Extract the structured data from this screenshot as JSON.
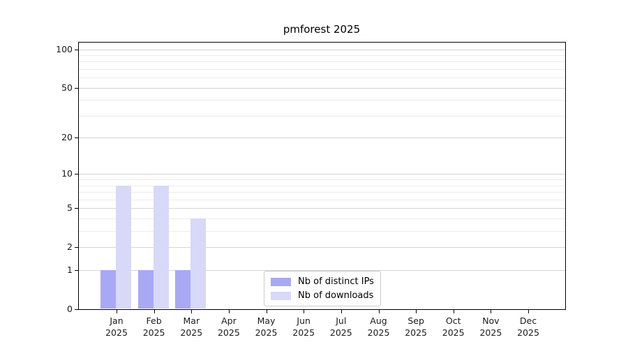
{
  "chart_data": {
    "type": "bar",
    "title": "pmforest 2025",
    "categories": [
      "Jan 2025",
      "Feb 2025",
      "Mar 2025",
      "Apr 2025",
      "May 2025",
      "Jun 2025",
      "Jul 2025",
      "Aug 2025",
      "Sep 2025",
      "Oct 2025",
      "Nov 2025",
      "Dec 2025"
    ],
    "series": [
      {
        "name": "Nb of distinct IPs",
        "color": "#a8a8f5",
        "values": [
          1,
          1,
          1,
          0,
          0,
          0,
          0,
          0,
          0,
          0,
          0,
          0
        ]
      },
      {
        "name": "Nb of downloads",
        "color": "#d8d8f8",
        "values": [
          8,
          8,
          4,
          0,
          0,
          0,
          0,
          0,
          0,
          0,
          0,
          0
        ]
      }
    ],
    "y_axis": {
      "scale": "log1p",
      "major_ticks": [
        0,
        1,
        2,
        5,
        10,
        20,
        50,
        100
      ],
      "minor_ticks": [
        3,
        4,
        6,
        7,
        8,
        9,
        30,
        40,
        60,
        70,
        80,
        90
      ],
      "ylim": [
        0,
        114
      ]
    },
    "xlabel": "",
    "ylabel": "",
    "grid": true,
    "legend_position": "lower center"
  },
  "colors": {
    "grid_major": "#d4d4d4",
    "grid_minor": "#ececec",
    "axis": "#000000",
    "legend_border": "#cccccc",
    "text": "#1a1a1a"
  }
}
